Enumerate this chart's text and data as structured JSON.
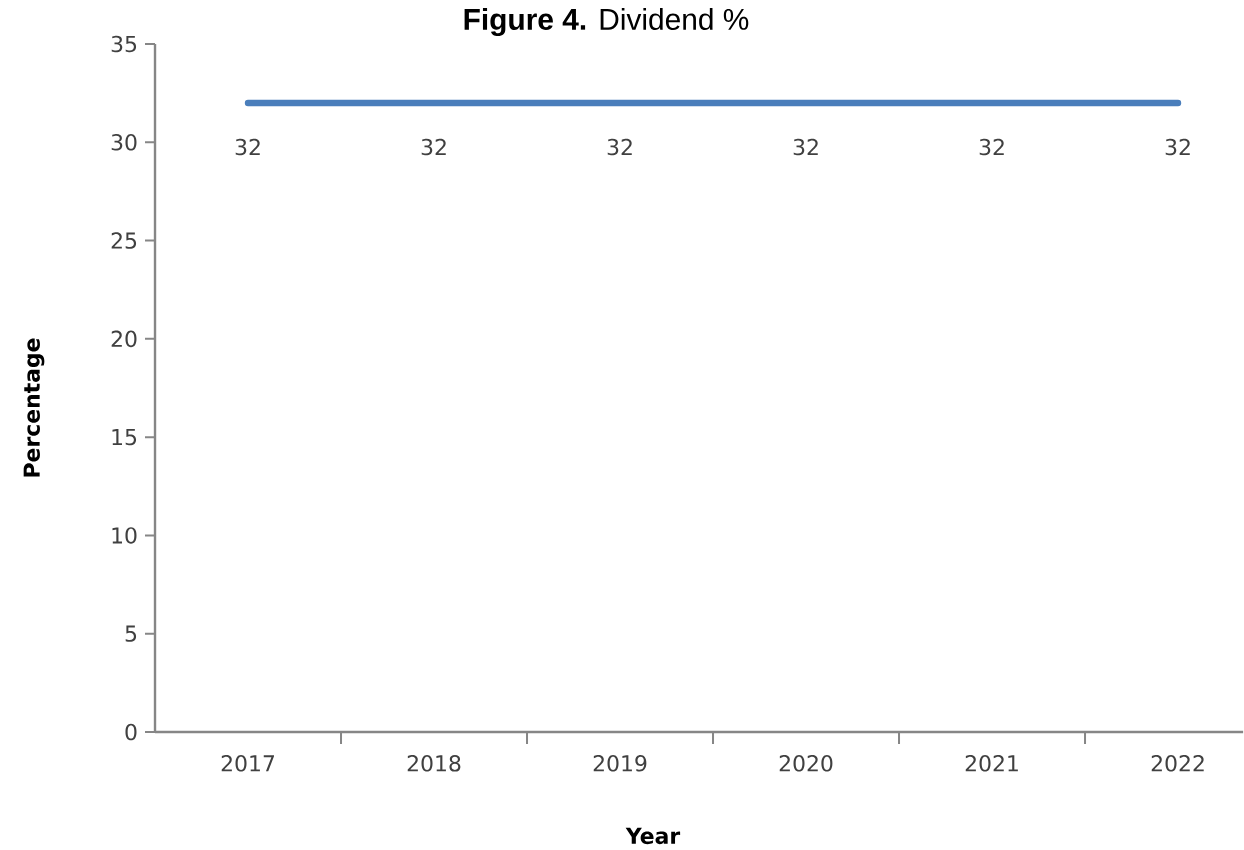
{
  "chart_data": {
    "type": "line",
    "title": "**Figure 4.** Dividend %",
    "xlabel": "Year",
    "ylabel": "Percentage",
    "categories": [
      "2017",
      "2018",
      "2019",
      "2020",
      "2021",
      "2022"
    ],
    "values": [
      32,
      32,
      32,
      32,
      32,
      32
    ],
    "color": "#4a7ebb",
    "line_style": "solid",
    "ylim": [
      0,
      35
    ],
    "yticks": [
      0,
      5,
      10,
      15,
      20,
      25,
      30,
      35
    ],
    "data_labels": true
  }
}
